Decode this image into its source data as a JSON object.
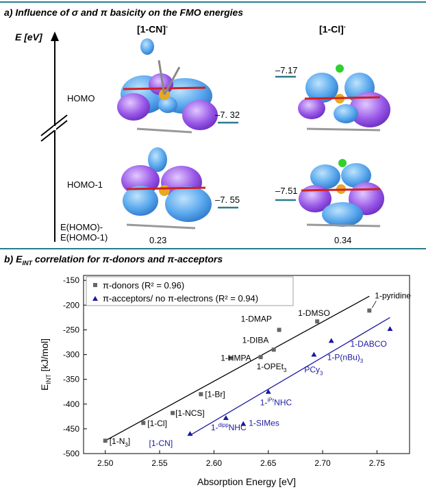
{
  "panel_a": {
    "title": "a) Influence of σ and π basicity on the FMO energies",
    "axis_label": "E [eV]",
    "row_homo": "HOMO",
    "row_homo1": "HOMO-1",
    "diff_label_1": "E(HOMO)-",
    "diff_label_2": "E(HOMO-1)",
    "complex_cn": {
      "name": "[1-CN]",
      "charge": "-",
      "homo": "–7. 32",
      "homo1": "–7. 55",
      "diff": "0.23"
    },
    "complex_cl": {
      "name": "[1-Cl]",
      "charge": "-",
      "homo": "–7.17",
      "homo1": "–7.51",
      "diff": "0.34"
    }
  },
  "panel_b": {
    "title_prefix": "b) E",
    "title_sub": "INT",
    "title_rest": " correlation for π-donors and π-acceptors"
  },
  "colors": {
    "rule": "#2a7a8c",
    "donor": "#666666",
    "acceptor": "#1a1a9e",
    "level": "#2a7a8c"
  },
  "chart_data": {
    "type": "scatter",
    "xlabel": "Absorption Energy [eV]",
    "ylabel_main": "E",
    "ylabel_sub": "INT",
    "ylabel_unit": " [kJ/mol]",
    "xlim": [
      2.48,
      2.78
    ],
    "ylim": [
      -500,
      -140
    ],
    "xticks": [
      2.5,
      2.55,
      2.6,
      2.65,
      2.7,
      2.75
    ],
    "xtick_labels": [
      "2.50",
      "2.55",
      "2.60",
      "2.65",
      "2.70",
      "2.75"
    ],
    "yticks": [
      -500,
      -450,
      -400,
      -350,
      -300,
      -250,
      -200,
      -150
    ],
    "ytick_labels": [
      "-500",
      "-450",
      "-400",
      "-350",
      "-300",
      "-250",
      "-200",
      "-150"
    ],
    "legend_position": "top-left",
    "series": [
      {
        "name": "π-donors (R² = 0.96)",
        "marker": "square",
        "fit": [
          [
            2.5,
            -474
          ],
          [
            2.743,
            -182
          ]
        ],
        "points": [
          {
            "x": 2.5,
            "y": -474,
            "label": "[1-N",
            "sub": "3",
            "suffix": "]"
          },
          {
            "x": 2.535,
            "y": -438,
            "label": "[1-Cl]"
          },
          {
            "x": 2.562,
            "y": -418,
            "label": "[1-NCS]"
          },
          {
            "x": 2.588,
            "y": -380,
            "label": "[1-Br]"
          },
          {
            "x": 2.615,
            "y": -307,
            "label": "1-HMPA"
          },
          {
            "x": 2.643,
            "y": -305,
            "label": "1-OPEt",
            "sub": "3"
          },
          {
            "x": 2.655,
            "y": -290,
            "label": "1-DIBA"
          },
          {
            "x": 2.66,
            "y": -250,
            "label": "1-DMAP"
          },
          {
            "x": 2.695,
            "y": -233,
            "label": "1-DMSO"
          },
          {
            "x": 2.743,
            "y": -211,
            "label": "1-pyridine"
          }
        ]
      },
      {
        "name": "π-acceptors/ no π-electrons (R² = 0.94)",
        "marker": "triangle",
        "fit": [
          [
            2.578,
            -463
          ],
          [
            2.762,
            -225
          ]
        ],
        "points": [
          {
            "x": 2.578,
            "y": -460,
            "label": "[1-CN]"
          },
          {
            "x": 2.611,
            "y": -428,
            "label": "1-",
            "sup": "dipp",
            "suffix": "NHC"
          },
          {
            "x": 2.627,
            "y": -440,
            "label": "1-SIMes"
          },
          {
            "x": 2.65,
            "y": -375,
            "label": "1-",
            "sup": "iPr",
            "suffix": "NHC"
          },
          {
            "x": 2.692,
            "y": -300,
            "label": "PCy",
            "sub": "3"
          },
          {
            "x": 2.708,
            "y": -272,
            "label": "1-P(nBu)",
            "sub": "3"
          },
          {
            "x": 2.762,
            "y": -248,
            "label": "1-DABCO"
          }
        ]
      }
    ]
  }
}
